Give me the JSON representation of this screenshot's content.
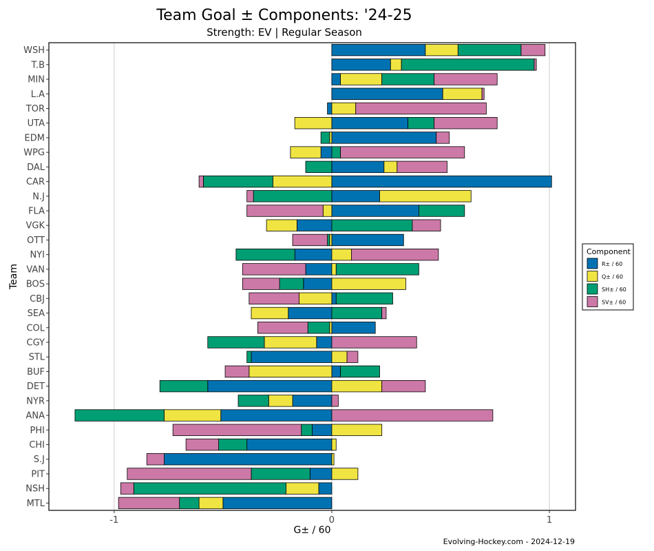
{
  "chart_data": {
    "type": "bar",
    "orientation": "horizontal",
    "stacked": "diverging",
    "title": "Team Goal ± Components: '24-25",
    "subtitle": "Strength: EV  |  Regular Season",
    "xlabel": "G± / 60",
    "ylabel": "Team",
    "xlim": [
      -1.3,
      1.12
    ],
    "xticks": [
      -1,
      0,
      1
    ],
    "grid": true,
    "legend_position": "right",
    "legend_title": "Component",
    "caption": "Evolving-Hockey.com - 2024-12-19",
    "categories": [
      "WSH",
      "T.B",
      "MIN",
      "L.A",
      "TOR",
      "UTA",
      "EDM",
      "WPG",
      "DAL",
      "CAR",
      "N.J",
      "FLA",
      "VGK",
      "OTT",
      "NYI",
      "VAN",
      "BOS",
      "CBJ",
      "SEA",
      "COL",
      "CGY",
      "STL",
      "BUF",
      "DET",
      "NYR",
      "ANA",
      "PHI",
      "CHI",
      "S.J",
      "PIT",
      "NSH",
      "MTL"
    ],
    "series": [
      {
        "name": "R± / 60",
        "color": "#0072B2",
        "values": [
          0.43,
          0.27,
          0.04,
          0.51,
          -0.02,
          0.35,
          0.48,
          -0.05,
          0.24,
          1.01,
          0.22,
          0.4,
          -0.16,
          0.33,
          -0.17,
          -0.12,
          -0.13,
          0.02,
          -0.2,
          0.2,
          -0.07,
          -0.37,
          0.04,
          -0.57,
          -0.18,
          -0.51,
          -0.09,
          -0.39,
          -0.77,
          -0.1,
          -0.06,
          -0.5
        ]
      },
      {
        "name": "Q± / 60",
        "color": "#F0E442",
        "values": [
          0.15,
          0.05,
          0.19,
          0.18,
          0.11,
          -0.17,
          -0.01,
          -0.14,
          0.06,
          -0.27,
          0.42,
          -0.04,
          -0.14,
          -0.01,
          0.09,
          0.02,
          0.34,
          -0.15,
          -0.17,
          -0.01,
          -0.24,
          0.07,
          -0.38,
          0.23,
          -0.11,
          -0.26,
          0.23,
          0.02,
          0.01,
          0.12,
          -0.15,
          -0.11
        ]
      },
      {
        "name": "SH± / 60",
        "color": "#009E73",
        "values": [
          0.29,
          0.61,
          0.24,
          0.0,
          0.0,
          0.12,
          -0.04,
          0.04,
          -0.12,
          -0.32,
          -0.36,
          0.21,
          0.37,
          -0.01,
          -0.27,
          0.38,
          -0.11,
          0.26,
          0.23,
          -0.1,
          -0.26,
          -0.02,
          0.18,
          -0.22,
          -0.14,
          -0.41,
          -0.05,
          -0.13,
          0.0,
          -0.27,
          -0.7,
          -0.09
        ]
      },
      {
        "name": "SV± / 60",
        "color": "#CC79A7",
        "values": [
          0.11,
          0.01,
          0.29,
          0.01,
          0.6,
          0.29,
          0.06,
          0.57,
          0.23,
          -0.02,
          -0.03,
          -0.35,
          0.13,
          -0.16,
          0.4,
          -0.29,
          -0.17,
          -0.23,
          0.02,
          -0.23,
          0.39,
          0.05,
          -0.11,
          0.2,
          0.03,
          0.74,
          -0.59,
          -0.15,
          -0.08,
          -0.57,
          -0.06,
          -0.28
        ]
      }
    ]
  }
}
